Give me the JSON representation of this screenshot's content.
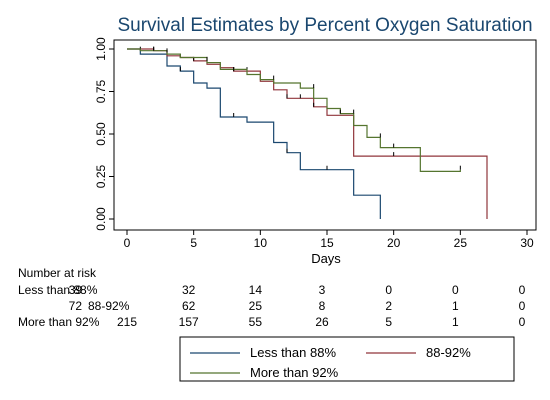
{
  "chart_data": {
    "type": "line",
    "title": "Survival Estimates by Percent Oxygen Saturation",
    "xlabel": "Days",
    "ylabel": "",
    "xlim": [
      0,
      30
    ],
    "ylim": [
      0,
      1
    ],
    "x_ticks": [
      "0",
      "5",
      "10",
      "15",
      "20",
      "25",
      "30"
    ],
    "y_ticks": [
      "0.00",
      "0.25",
      "0.50",
      "0.75",
      "1.00"
    ],
    "grid": false,
    "legend_position": "bottom",
    "series": [
      {
        "name": "Less than 88%",
        "color": "#1a476f",
        "steps": [
          [
            0,
            1.0
          ],
          [
            1,
            0.97
          ],
          [
            3,
            0.9
          ],
          [
            4,
            0.87
          ],
          [
            5,
            0.8
          ],
          [
            6,
            0.77
          ],
          [
            7,
            0.6
          ],
          [
            9,
            0.57
          ],
          [
            11,
            0.45
          ],
          [
            12,
            0.39
          ],
          [
            13,
            0.29
          ],
          [
            17,
            0.14
          ],
          [
            19,
            0.0
          ]
        ],
        "censored": [
          [
            4,
            0.87
          ],
          [
            8,
            0.6
          ],
          [
            12,
            0.39
          ],
          [
            15,
            0.29
          ]
        ]
      },
      {
        "name": "88-92%",
        "color": "#90353b",
        "steps": [
          [
            0,
            1.0
          ],
          [
            2,
            0.99
          ],
          [
            3,
            0.96
          ],
          [
            4,
            0.95
          ],
          [
            5,
            0.93
          ],
          [
            6,
            0.91
          ],
          [
            7,
            0.89
          ],
          [
            8,
            0.87
          ],
          [
            10,
            0.81
          ],
          [
            11,
            0.76
          ],
          [
            12,
            0.71
          ],
          [
            14,
            0.66
          ],
          [
            15,
            0.61
          ],
          [
            16,
            0.61
          ],
          [
            17,
            0.37
          ],
          [
            27,
            0.0
          ]
        ],
        "censored": [
          [
            1,
            0.99
          ],
          [
            2,
            0.99
          ],
          [
            4,
            0.95
          ],
          [
            5,
            0.93
          ],
          [
            8,
            0.87
          ],
          [
            9,
            0.87
          ],
          [
            12,
            0.71
          ],
          [
            13,
            0.71
          ],
          [
            14,
            0.66
          ],
          [
            20,
            0.37
          ]
        ]
      },
      {
        "name": "More than 92%",
        "color": "#55752f",
        "steps": [
          [
            0,
            1.0
          ],
          [
            1,
            0.99
          ],
          [
            3,
            0.97
          ],
          [
            4,
            0.95
          ],
          [
            6,
            0.92
          ],
          [
            7,
            0.88
          ],
          [
            9,
            0.85
          ],
          [
            10,
            0.82
          ],
          [
            11,
            0.8
          ],
          [
            13,
            0.77
          ],
          [
            14,
            0.71
          ],
          [
            15,
            0.65
          ],
          [
            16,
            0.62
          ],
          [
            17,
            0.55
          ],
          [
            18,
            0.48
          ],
          [
            19,
            0.42
          ],
          [
            22,
            0.28
          ],
          [
            25,
            0.29
          ]
        ],
        "censored": [
          [
            2,
            0.99
          ],
          [
            3,
            0.98
          ],
          [
            6,
            0.93
          ],
          [
            8,
            0.87
          ],
          [
            11,
            0.82
          ],
          [
            14,
            0.77
          ],
          [
            16,
            0.62
          ],
          [
            17,
            0.62
          ],
          [
            19,
            0.48
          ],
          [
            20,
            0.42
          ],
          [
            25,
            0.29
          ]
        ]
      }
    ]
  },
  "risk_table": {
    "header": "Number at risk",
    "rows": [
      {
        "label": "Less than 88%",
        "values": [
          "39",
          "32",
          "14",
          "3",
          "0",
          "0",
          "0"
        ]
      },
      {
        "label": "88-92%",
        "values": [
          "72",
          "62",
          "25",
          "8",
          "2",
          "1",
          "0"
        ]
      },
      {
        "label": "More than 92%",
        "values": [
          "215",
          "157",
          "55",
          "26",
          "5",
          "1",
          "0"
        ]
      }
    ]
  }
}
